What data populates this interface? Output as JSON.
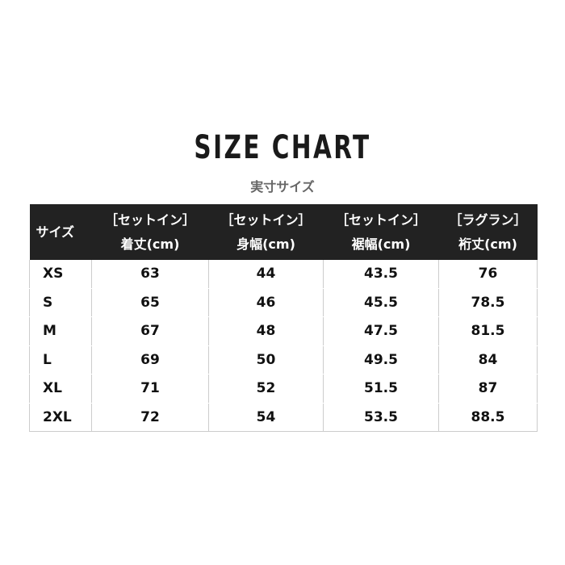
{
  "title": "SIZE CHART",
  "subtitle": "実寸サイズ",
  "table": {
    "size_header": "サイズ",
    "columns": [
      {
        "type": "［セットイン］",
        "label": "着丈(cm)"
      },
      {
        "type": "［セットイン］",
        "label": "身幅(cm)"
      },
      {
        "type": "［セットイン］",
        "label": "裾幅(cm)"
      },
      {
        "type": "［ラグラン］",
        "label": "裄丈(cm)"
      }
    ],
    "rows": [
      {
        "size": "XS",
        "values": [
          "63",
          "44",
          "43.5",
          "76"
        ]
      },
      {
        "size": "S",
        "values": [
          "65",
          "46",
          "45.5",
          "78.5"
        ]
      },
      {
        "size": "M",
        "values": [
          "67",
          "48",
          "47.5",
          "81.5"
        ]
      },
      {
        "size": "L",
        "values": [
          "69",
          "50",
          "49.5",
          "84"
        ]
      },
      {
        "size": "XL",
        "values": [
          "71",
          "52",
          "51.5",
          "87"
        ]
      },
      {
        "size": "2XL",
        "values": [
          "72",
          "54",
          "53.5",
          "88.5"
        ]
      }
    ]
  },
  "colors": {
    "header_bg": "#222222",
    "border": "#cccccc"
  }
}
